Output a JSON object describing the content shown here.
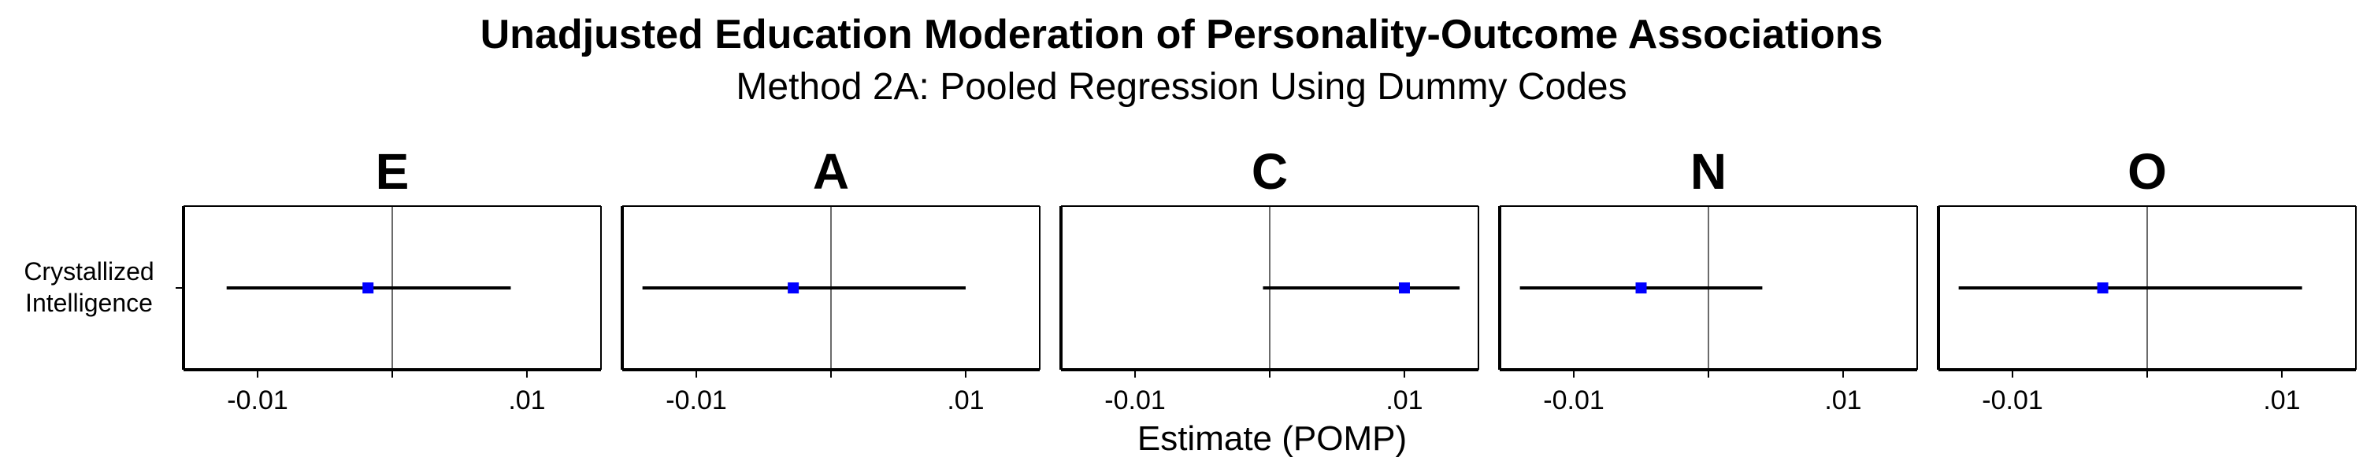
{
  "chart_data": {
    "type": "forest",
    "title": "Unadjusted Education Moderation of Personality-Outcome Associations",
    "subtitle": "Method 2A: Pooled Regression Using Dummy Codes",
    "xlabel": "Estimate (POMP)",
    "ylabel": "",
    "categories": [
      "Crystallized\nIntelligence"
    ],
    "xlim": [
      -0.0155,
      0.0155
    ],
    "x_tick_values": [
      -0.01,
      0,
      0.01
    ],
    "x_tick_labels": [
      "-0.01",
      "",
      ".01"
    ],
    "reference_line": 0,
    "point_color": "#0000ff",
    "panels": [
      {
        "label": "E",
        "estimate": -0.0018,
        "lower": -0.0123,
        "upper": 0.0088
      },
      {
        "label": "A",
        "estimate": -0.0028,
        "lower": -0.014,
        "upper": 0.01
      },
      {
        "label": "C",
        "estimate": 0.01,
        "lower": -0.0005,
        "upper": 0.0141
      },
      {
        "label": "N",
        "estimate": -0.005,
        "lower": -0.014,
        "upper": 0.004
      },
      {
        "label": "O",
        "estimate": -0.0033,
        "lower": -0.014,
        "upper": 0.0115
      }
    ]
  }
}
